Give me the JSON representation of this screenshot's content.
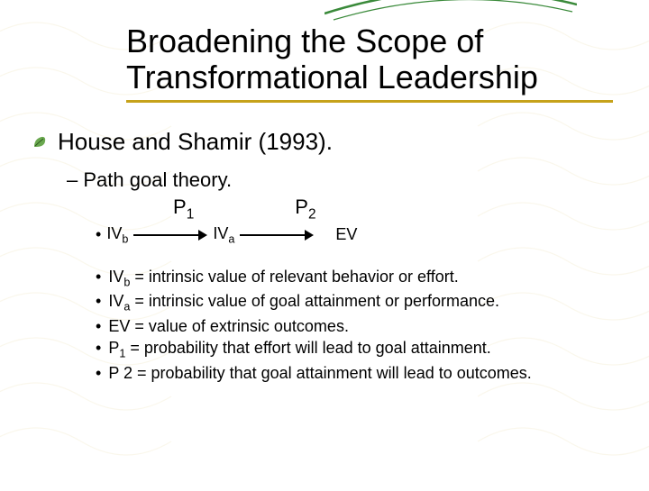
{
  "colors": {
    "underline": "#c6a21a",
    "pattern": "#c6a21a",
    "swoosh": "#3a8a3a"
  },
  "title": "Broadening the Scope of Transformational Leadership",
  "l1": "House and Shamir (1993).",
  "l2_dash": "–",
  "l2": "Path goal theory.",
  "path": {
    "p1": "P",
    "p1_sub": "1",
    "p2": "P",
    "p2_sub": "2"
  },
  "flow": {
    "ivb": "IV",
    "ivb_sub": "b",
    "iva": "IV",
    "iva_sub": "a",
    "ev": "EV"
  },
  "defs": [
    {
      "term": "IV",
      "sub": "b",
      "rest": " = intrinsic value of relevant behavior or effort."
    },
    {
      "term": "IV",
      "sub": "a",
      "rest": " = intrinsic value of goal attainment or performance."
    },
    {
      "term": "EV",
      "sub": "",
      "rest": " = value of extrinsic outcomes."
    },
    {
      "term": "P",
      "sub": "1",
      "rest": " = probability that effort will lead to goal attainment."
    },
    {
      "term": "P 2",
      "sub": "",
      "rest": " = probability that goal attainment will lead to outcomes."
    }
  ]
}
